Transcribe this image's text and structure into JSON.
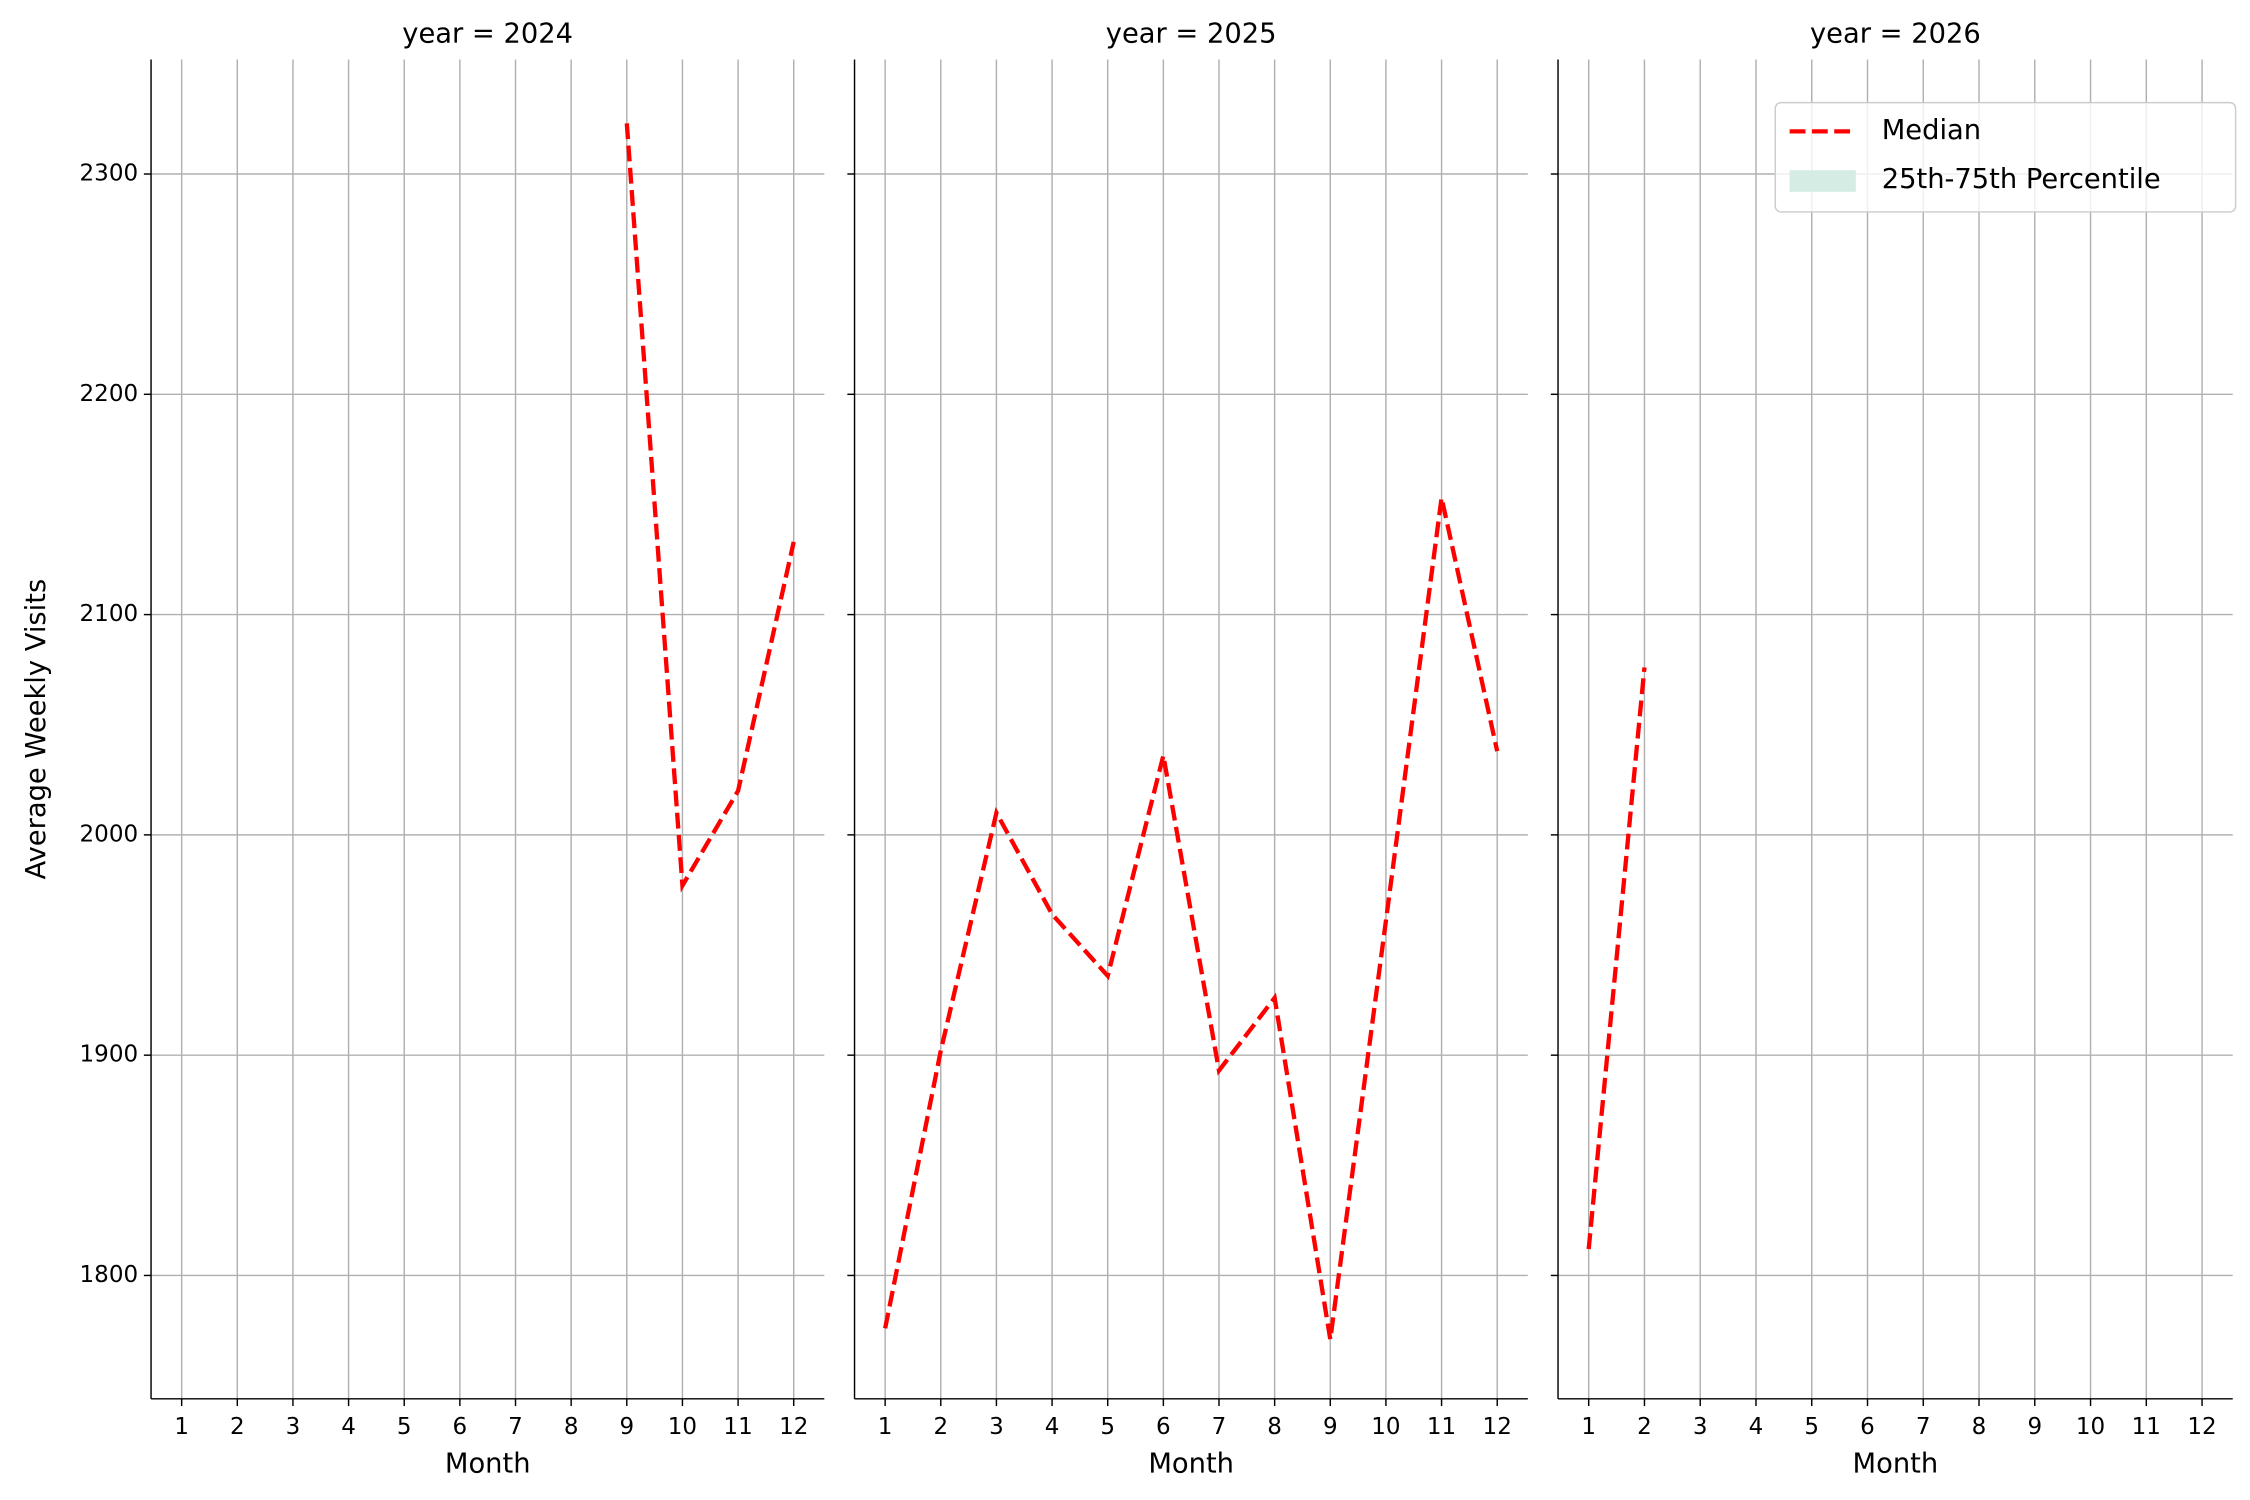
{
  "chart_data": [
    {
      "type": "line",
      "title": "year = 2024",
      "xlabel": "Month",
      "ylabel": "Average Weekly Visits",
      "x": [
        1,
        2,
        3,
        4,
        5,
        6,
        7,
        8,
        9,
        10,
        11,
        12
      ],
      "series": [
        {
          "name": "Median",
          "color": "#ff0000",
          "values": [
            null,
            null,
            null,
            null,
            null,
            null,
            null,
            null,
            2323,
            1977,
            2020,
            2133
          ]
        }
      ],
      "xlim": [
        0.45,
        12.55
      ],
      "xticks": [
        1,
        2,
        3,
        4,
        5,
        6,
        7,
        8,
        9,
        10,
        11,
        12
      ],
      "ylim": [
        1744,
        2352
      ],
      "yticks": [
        1800,
        1900,
        2000,
        2100,
        2200,
        2300
      ],
      "grid": true
    },
    {
      "type": "line",
      "title": "year = 2025",
      "xlabel": "Month",
      "x": [
        1,
        2,
        3,
        4,
        5,
        6,
        7,
        8,
        9,
        10,
        11,
        12
      ],
      "series": [
        {
          "name": "Median",
          "color": "#ff0000",
          "values": [
            1776,
            1902,
            2010,
            1964,
            1936,
            2036,
            1893,
            1926,
            1771,
            1961,
            2153,
            2038
          ]
        }
      ],
      "xlim": [
        0.45,
        12.55
      ],
      "xticks": [
        1,
        2,
        3,
        4,
        5,
        6,
        7,
        8,
        9,
        10,
        11,
        12
      ],
      "ylim": [
        1744,
        2352
      ],
      "yticks": [
        1800,
        1900,
        2000,
        2100,
        2200,
        2300
      ],
      "grid": true
    },
    {
      "type": "line",
      "title": "year = 2026",
      "xlabel": "Month",
      "x": [
        1,
        2,
        3,
        4,
        5,
        6,
        7,
        8,
        9,
        10,
        11,
        12
      ],
      "series": [
        {
          "name": "Median",
          "color": "#ff0000",
          "values": [
            1812,
            2076,
            null,
            null,
            null,
            null,
            null,
            null,
            null,
            null,
            null,
            null
          ]
        }
      ],
      "legend": [
        {
          "name": "Median",
          "color": "#ff0000"
        },
        {
          "name": "25th-75th Percentile",
          "color": "#d5ece5"
        }
      ],
      "legend_position": "upper right",
      "xlim": [
        0.45,
        12.55
      ],
      "xticks": [
        1,
        2,
        3,
        4,
        5,
        6,
        7,
        8,
        9,
        10,
        11,
        12
      ],
      "ylim": [
        1744,
        2352
      ],
      "yticks": [
        1800,
        1900,
        2000,
        2100,
        2200,
        2300
      ],
      "grid": true
    }
  ]
}
